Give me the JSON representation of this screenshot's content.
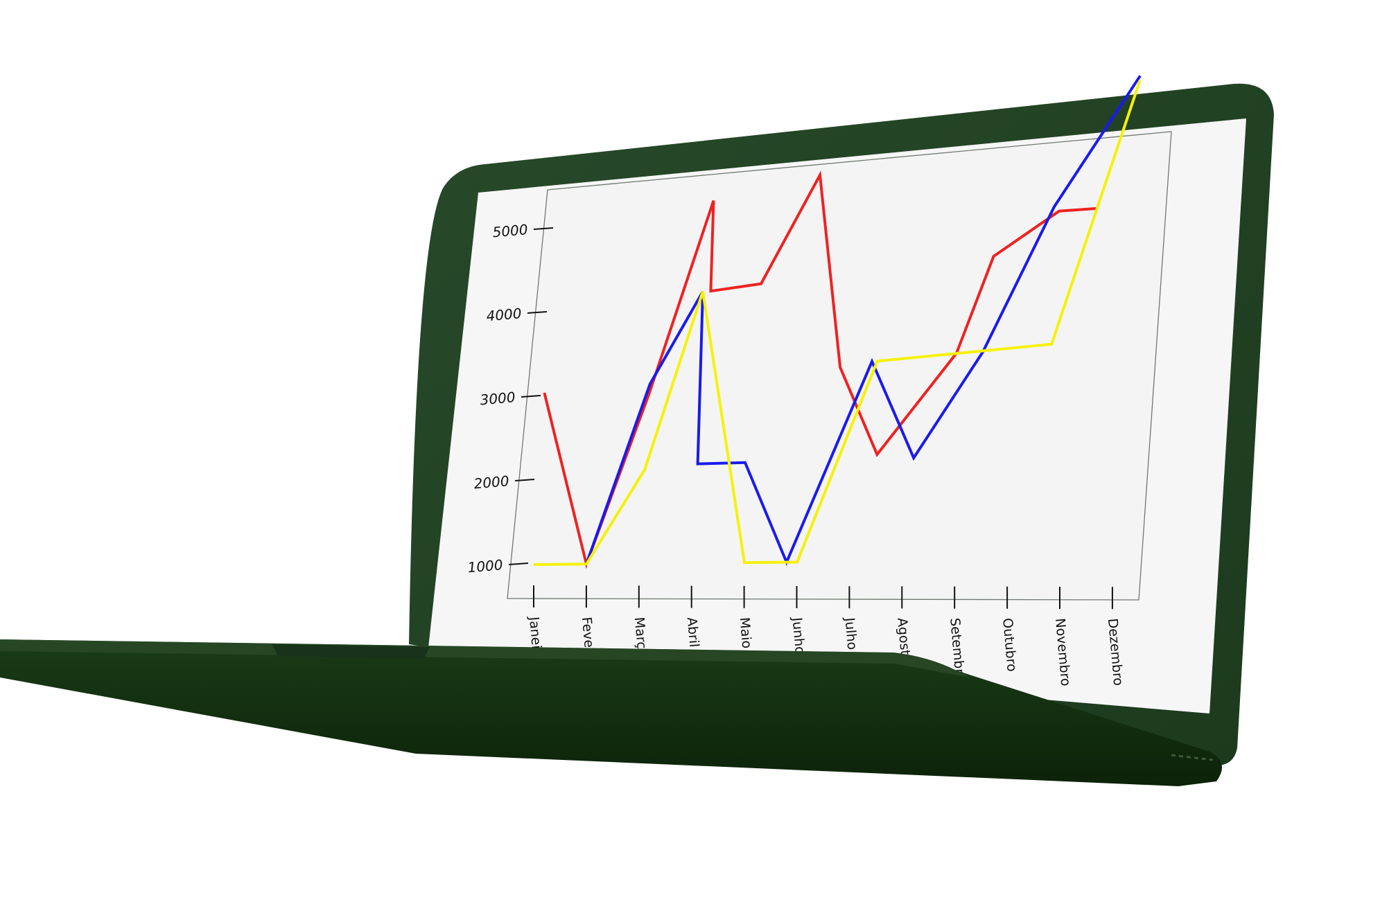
{
  "chart_data": {
    "type": "line",
    "title": "",
    "xlabel": "",
    "ylabel": "",
    "ylim": [
      1000,
      5000
    ],
    "yticks": [
      "1000",
      "2000",
      "3000",
      "4000",
      "5000"
    ],
    "categories": [
      "Janeiro",
      "Fevereiro",
      "Março",
      "Abril",
      "Maio",
      "Junho",
      "Julho",
      "Agosto",
      "Setembro",
      "Outubro",
      "Novembro",
      "Dezembro"
    ],
    "grid": false,
    "series": [
      {
        "color": "#ee2222",
        "points": [
          [
            0,
            3050
          ],
          [
            1,
            1000
          ],
          [
            2,
            3000
          ],
          [
            3,
            5200
          ],
          [
            3.05,
            4150
          ],
          [
            4,
            4200
          ],
          [
            5,
            5400
          ],
          [
            5.6,
            3200
          ],
          [
            6.4,
            2200
          ],
          [
            7.8,
            3300
          ],
          [
            8.4,
            4350
          ],
          [
            9.6,
            4800
          ],
          [
            10.3,
            4800
          ]
        ]
      },
      {
        "color": "#1a1aee",
        "points": [
          [
            1,
            1000
          ],
          [
            2,
            3100
          ],
          [
            2.9,
            4150
          ],
          [
            3,
            2150
          ],
          [
            3.9,
            2150
          ],
          [
            4.8,
            1000
          ],
          [
            6.2,
            3250
          ],
          [
            7.1,
            2150
          ],
          [
            8.3,
            3300
          ],
          [
            9.5,
            4850
          ],
          [
            11,
            6200
          ]
        ]
      },
      {
        "color": "#f6f10a",
        "points": [
          [
            0,
            1000
          ],
          [
            1,
            1000
          ],
          [
            2,
            2100
          ],
          [
            2.9,
            4150
          ],
          [
            4,
            1000
          ],
          [
            5,
            1000
          ],
          [
            6.3,
            3250
          ],
          [
            9.6,
            3350
          ],
          [
            11,
            6150
          ]
        ]
      }
    ]
  }
}
